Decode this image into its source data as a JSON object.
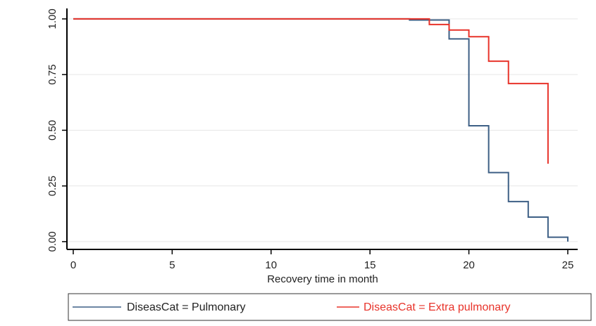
{
  "chart_data": {
    "type": "step",
    "x_label": "Recovery  time in month",
    "xlim": [
      -0.32,
      25.5
    ],
    "xticks": [
      0,
      5,
      10,
      15,
      20,
      25
    ],
    "ylim": [
      -0.035,
      1.047
    ],
    "yticks": [
      {
        "value": 0,
        "label": "0.00"
      },
      {
        "value": 0.25,
        "label": "0.25"
      },
      {
        "value": 0.5,
        "label": "0.50"
      },
      {
        "value": 0.75,
        "label": "0.75"
      },
      {
        "value": 1,
        "label": "1.00"
      }
    ],
    "grid": true,
    "legend": "bottom",
    "series": [
      {
        "name": "DiseasCat = Pulmonary",
        "color": "#3d5f85",
        "x": [
          0,
          17,
          19,
          20,
          21,
          22,
          23,
          24,
          25
        ],
        "values": [
          1,
          0.995,
          0.91,
          0.52,
          0.31,
          0.18,
          0.11,
          0.02,
          0
        ]
      },
      {
        "name": "DiseasCat = Extra pulmonary",
        "color": "#e8332a",
        "x": [
          0,
          18,
          19,
          20,
          21,
          22,
          24
        ],
        "values": [
          1,
          0.975,
          0.95,
          0.92,
          0.81,
          0.71,
          0.35
        ]
      }
    ]
  }
}
